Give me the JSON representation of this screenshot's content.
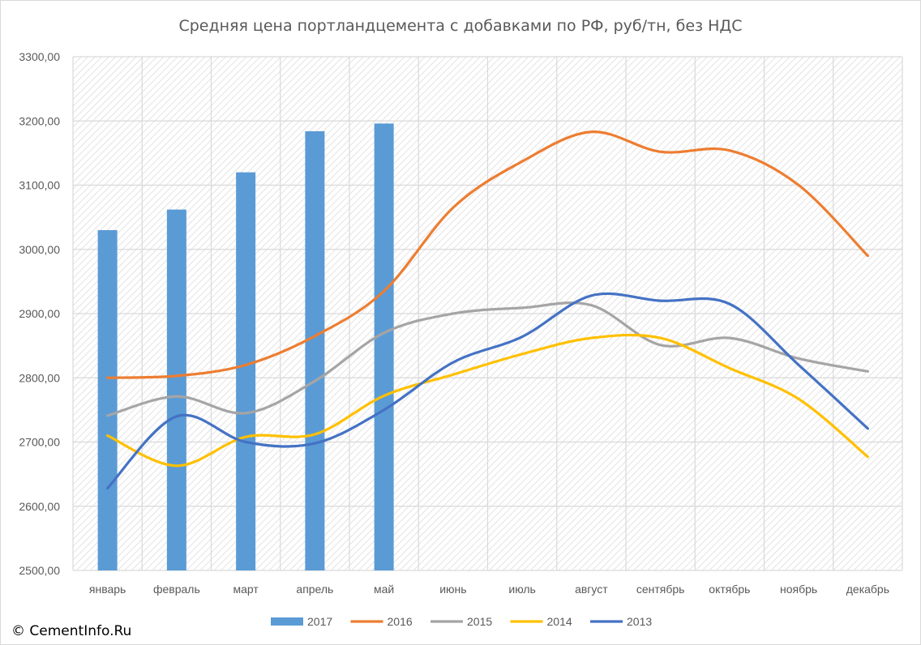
{
  "chart_data": {
    "type": "bar+line",
    "title": "Средняя цена портландцемента с добавками по РФ, руб/тн, без НДС",
    "categories": [
      "январь",
      "февраль",
      "март",
      "апрель",
      "май",
      "июнь",
      "июль",
      "август",
      "сентябрь",
      "октябрь",
      "ноябрь",
      "декабрь"
    ],
    "ylim": [
      2500,
      3300
    ],
    "yticks": [
      "2500,00",
      "2600,00",
      "2700,00",
      "2800,00",
      "2900,00",
      "3000,00",
      "3100,00",
      "3200,00",
      "3300,00"
    ],
    "grid": true,
    "legend_position": "bottom",
    "bar_series": {
      "name": "2017",
      "color": "#5b9bd5",
      "values": [
        3030,
        3062,
        3120,
        3184,
        3196,
        null,
        null,
        null,
        null,
        null,
        null,
        null
      ]
    },
    "line_series": [
      {
        "name": "2016",
        "color": "#ed7d31",
        "values": [
          2800,
          2803,
          2820,
          2865,
          2935,
          3065,
          3137,
          3183,
          3152,
          3154,
          3100,
          2990
        ]
      },
      {
        "name": "2015",
        "color": "#a5a5a5",
        "values": [
          2741,
          2771,
          2745,
          2795,
          2870,
          2900,
          2909,
          2913,
          2851,
          2862,
          2830,
          2810
        ]
      },
      {
        "name": "2014",
        "color": "#ffc000",
        "values": [
          2710,
          2663,
          2708,
          2712,
          2772,
          2805,
          2837,
          2862,
          2862,
          2815,
          2767,
          2677
        ]
      },
      {
        "name": "2013",
        "color": "#4472c4",
        "values": [
          2628,
          2740,
          2700,
          2698,
          2750,
          2824,
          2864,
          2928,
          2920,
          2915,
          2820,
          2721
        ]
      }
    ]
  },
  "watermark": "© CementInfo.Ru"
}
